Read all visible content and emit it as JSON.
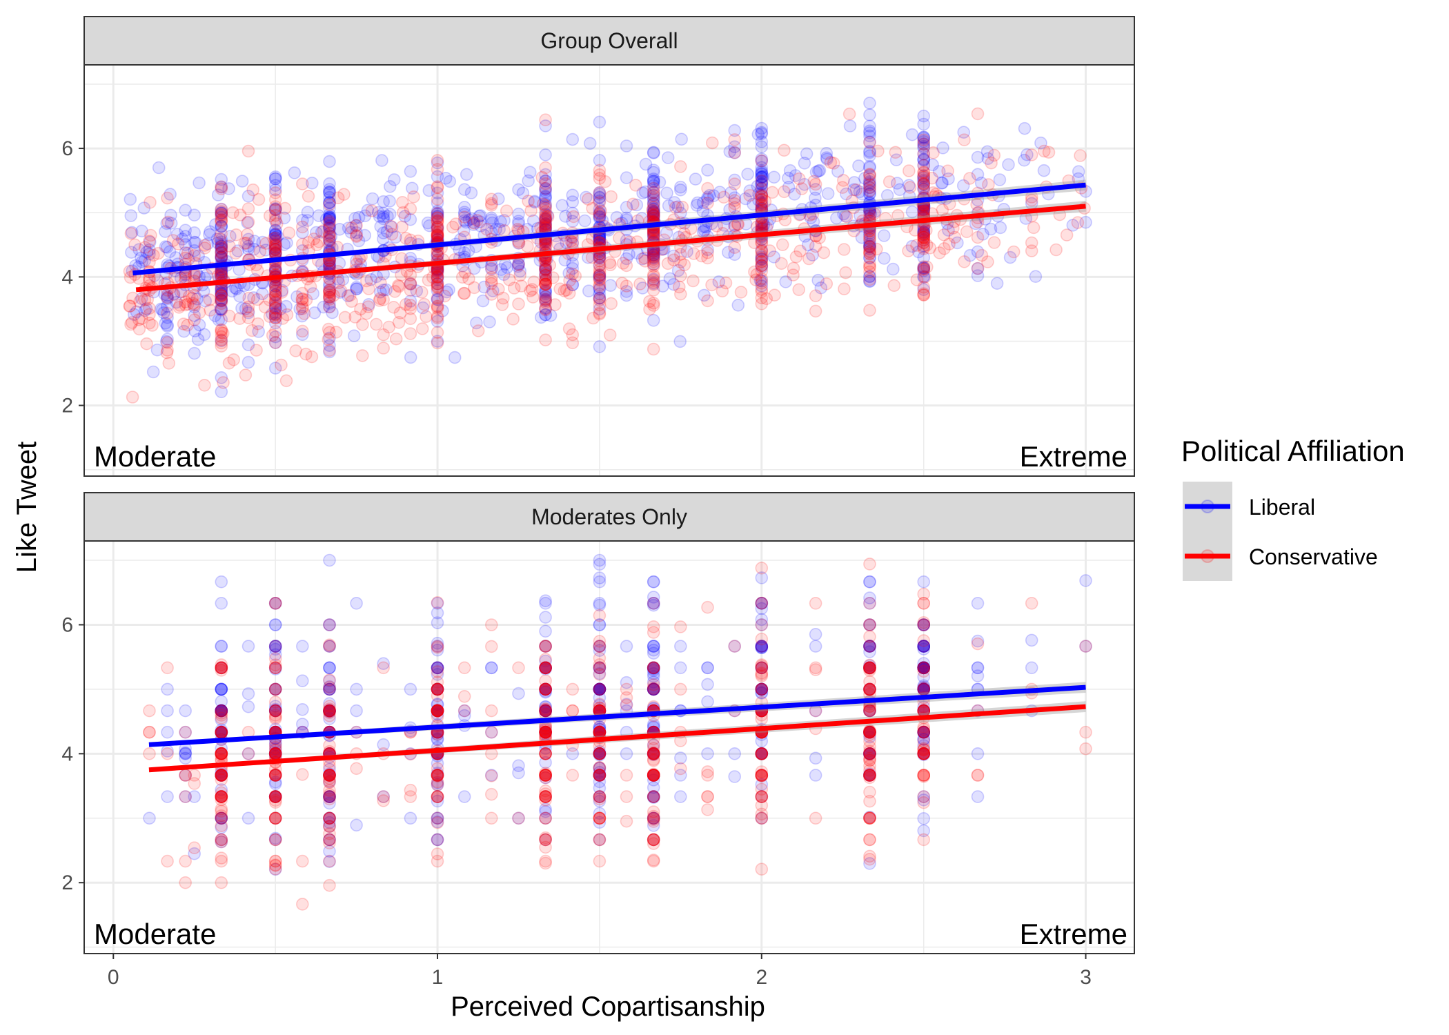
{
  "chart_data": {
    "type": "scatter",
    "xlabel": "Perceived Copartisanship",
    "ylabel": "Like Tweet",
    "xlim": [
      -0.09,
      3.15
    ],
    "ylim": [
      0.9,
      7.3
    ],
    "x_ticks": [
      0,
      1,
      2,
      3
    ],
    "y_ticks": [
      2,
      4,
      6
    ],
    "grid": true,
    "legend": {
      "title": "Political Affiliation",
      "position": "right",
      "entries": [
        {
          "label": "Liberal",
          "color": "#0000ff"
        },
        {
          "label": "Conservative",
          "color": "#ff0000"
        }
      ]
    },
    "point_alpha": 0.12,
    "panels": [
      {
        "strip": "Group Overall",
        "left_annotation": "Moderate",
        "right_annotation": "Extreme",
        "series": [
          {
            "name": "Liberal",
            "color": "#0000ff",
            "fit_line": {
              "x": [
                0.06,
                3.0
              ],
              "y": [
                4.06,
                5.43
              ]
            },
            "points_summary": {
              "x_range": [
                0.05,
                3.0
              ],
              "y_range": [
                1.4,
                6.9
              ],
              "n_approx": 1100
            }
          },
          {
            "name": "Conservative",
            "color": "#ff0000",
            "fit_line": {
              "x": [
                0.07,
                3.0
              ],
              "y": [
                3.8,
                5.1
              ]
            },
            "points_summary": {
              "x_range": [
                0.05,
                3.0
              ],
              "y_range": [
                1.6,
                6.6
              ],
              "n_approx": 1000
            }
          }
        ]
      },
      {
        "strip": "Moderates Only",
        "left_annotation": "Moderate",
        "right_annotation": "Extreme",
        "series": [
          {
            "name": "Liberal",
            "color": "#0000ff",
            "fit_line": {
              "x": [
                0.11,
                3.0
              ],
              "y": [
                4.14,
                5.03
              ]
            },
            "points_summary": {
              "x_range": [
                0.1,
                3.0
              ],
              "y_range": [
                2.2,
                7.0
              ],
              "n_approx": 700
            }
          },
          {
            "name": "Conservative",
            "color": "#ff0000",
            "fit_line": {
              "x": [
                0.11,
                3.0
              ],
              "y": [
                3.75,
                4.73
              ]
            },
            "points_summary": {
              "x_range": [
                0.1,
                3.0
              ],
              "y_range": [
                1.2,
                7.0
              ],
              "n_approx": 750
            }
          }
        ]
      }
    ]
  }
}
